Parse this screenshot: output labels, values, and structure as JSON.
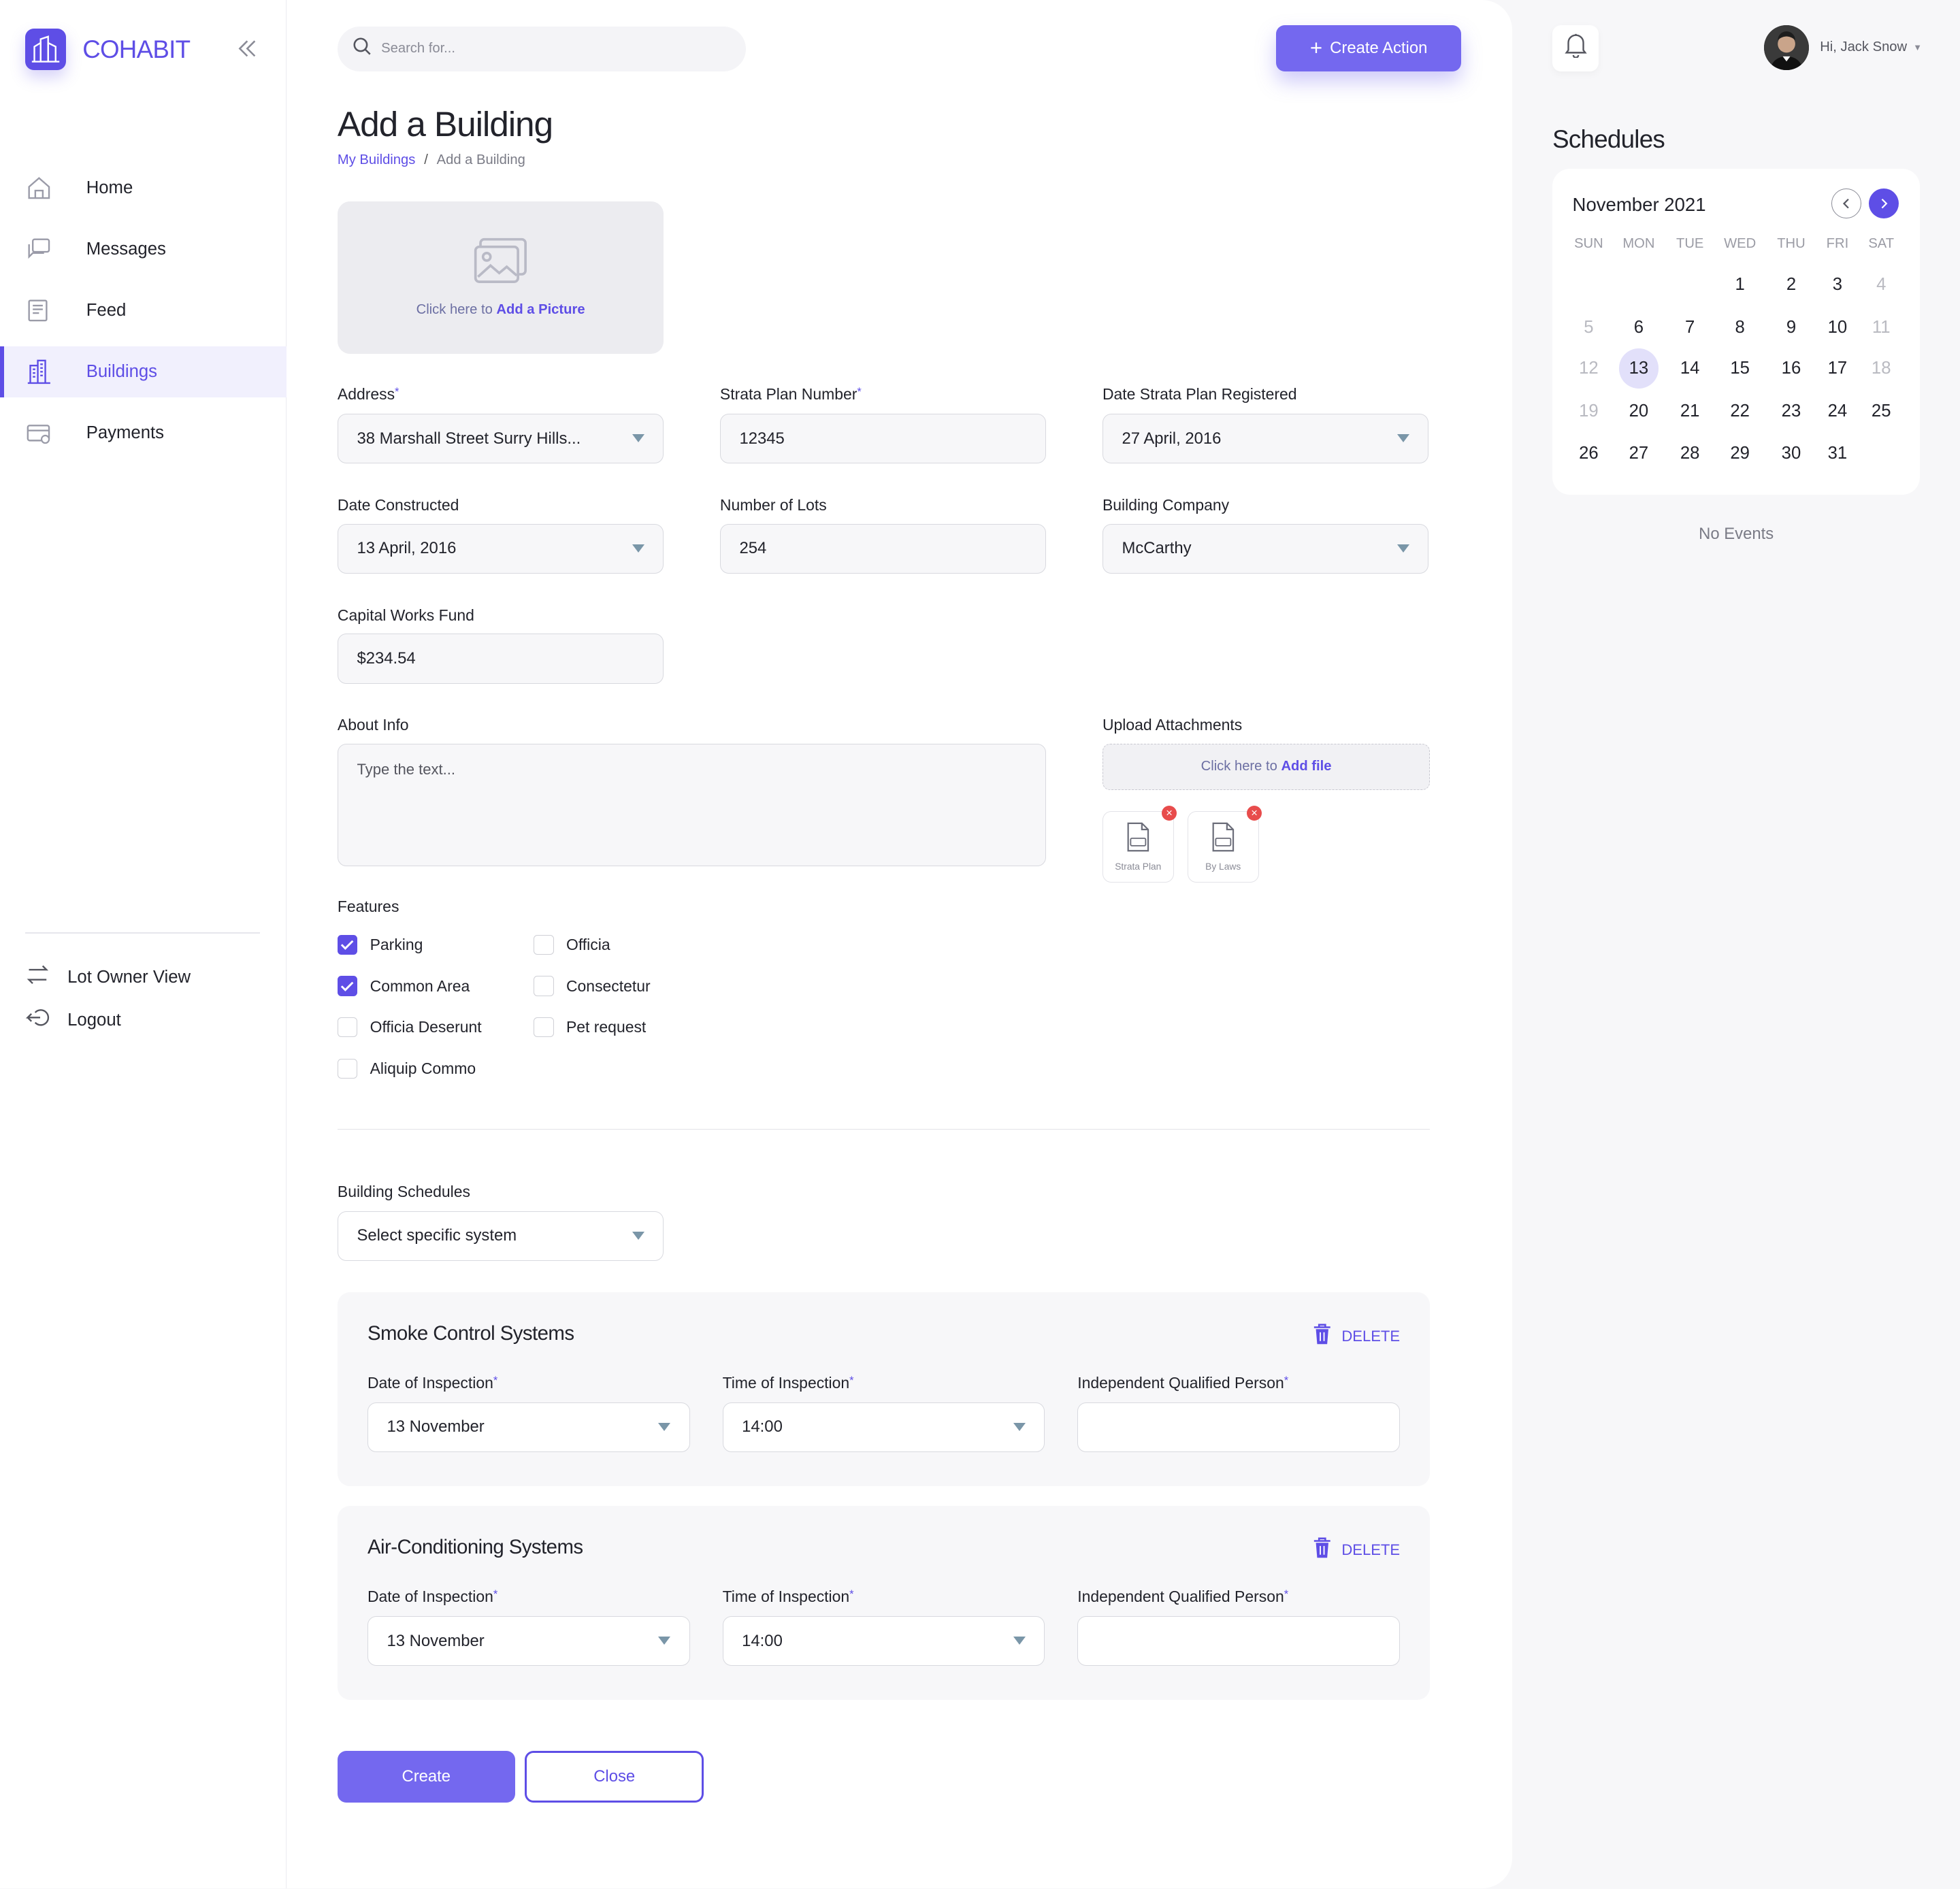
{
  "app": {
    "name": "COHABIT"
  },
  "sidebar": {
    "items": [
      {
        "label": "Home",
        "icon": "home-icon"
      },
      {
        "label": "Messages",
        "icon": "messages-icon"
      },
      {
        "label": "Feed",
        "icon": "feed-icon"
      },
      {
        "label": "Buildings",
        "icon": "buildings-icon",
        "active": true
      },
      {
        "label": "Payments",
        "icon": "payments-icon"
      }
    ],
    "bottom": [
      {
        "label": "Lot Owner View",
        "icon": "switch-icon"
      },
      {
        "label": "Logout",
        "icon": "logout-icon"
      }
    ]
  },
  "header": {
    "search_placeholder": "Search for...",
    "create_action": "Create Action"
  },
  "page": {
    "title": "Add a Building",
    "breadcrumb": [
      "My Buildings",
      "Add a Building"
    ],
    "picture": {
      "prefix": "Click here to",
      "action": "Add a Picture"
    }
  },
  "form": {
    "address": {
      "label": "Address",
      "value": "38 Marshall Street Surry Hills..."
    },
    "strata_plan_number": {
      "label": "Strata Plan Number",
      "value": "12345"
    },
    "date_registered": {
      "label": "Date Strata Plan Registered",
      "value": "27 April, 2016"
    },
    "date_constructed": {
      "label": "Date Constructed",
      "value": "13 April, 2016"
    },
    "number_of_lots": {
      "label": "Number of Lots",
      "value": "254"
    },
    "building_company": {
      "label": "Building Company",
      "value": "McCarthy"
    },
    "capital_works_fund": {
      "label": "Capital Works Fund",
      "value": "$234.54"
    },
    "about_info": {
      "label": "About Info",
      "placeholder": "Type the text..."
    },
    "upload": {
      "label": "Upload Attachments",
      "prefix": "Click here to",
      "action": "Add file"
    },
    "files": [
      {
        "name": "Strata Plan",
        "type": "PDF"
      },
      {
        "name": "By Laws",
        "type": "PDF"
      }
    ],
    "features": {
      "title": "Features",
      "items": [
        {
          "label": "Parking",
          "checked": true
        },
        {
          "label": "Common Area",
          "checked": true
        },
        {
          "label": "Officia Deserunt",
          "checked": false
        },
        {
          "label": "Aliquip Commo",
          "checked": false
        },
        {
          "label": "Officia",
          "checked": false
        },
        {
          "label": "Consectetur",
          "checked": false
        },
        {
          "label": "Pet request",
          "checked": false
        }
      ]
    },
    "building_schedules": {
      "label": "Building Schedules",
      "value": "Select specific system"
    }
  },
  "schedules": [
    {
      "title": "Smoke Control Systems",
      "delete": "DELETE",
      "date_label": "Date of Inspection",
      "date_value": "13 November",
      "time_label": "Time of Inspection",
      "time_value": "14:00",
      "person_label": "Independent Qualified Person",
      "person_value": ""
    },
    {
      "title": "Air-Conditioning Systems",
      "delete": "DELETE",
      "date_label": "Date of Inspection",
      "date_value": "13 November",
      "time_label": "Time of Inspection",
      "time_value": "14:00",
      "person_label": "Independent Qualified Person",
      "person_value": ""
    }
  ],
  "actions": {
    "create": "Create",
    "close": "Close"
  },
  "user": {
    "greeting": "Hi, Jack Snow"
  },
  "right_panel": {
    "title": "Schedules",
    "calendar": {
      "month": "November 2021",
      "weekdays": [
        "SUN",
        "MON",
        "TUE",
        "WED",
        "THU",
        "FRI",
        "SAT"
      ],
      "weeks": [
        [
          "",
          "",
          "",
          "1",
          "2",
          "3",
          "4"
        ],
        [
          "5",
          "6",
          "7",
          "8",
          "9",
          "10",
          "11"
        ],
        [
          "12",
          "13",
          "14",
          "15",
          "16",
          "17",
          "18"
        ],
        [
          "19",
          "20",
          "21",
          "22",
          "23",
          "24",
          "25"
        ],
        [
          "26",
          "27",
          "28",
          "29",
          "30",
          "31",
          ""
        ]
      ],
      "today": "13"
    },
    "no_events": "No Events"
  },
  "colors": {
    "accent": "#5e4ee6",
    "accent_light": "#7468ef",
    "danger": "#e84c4c"
  }
}
